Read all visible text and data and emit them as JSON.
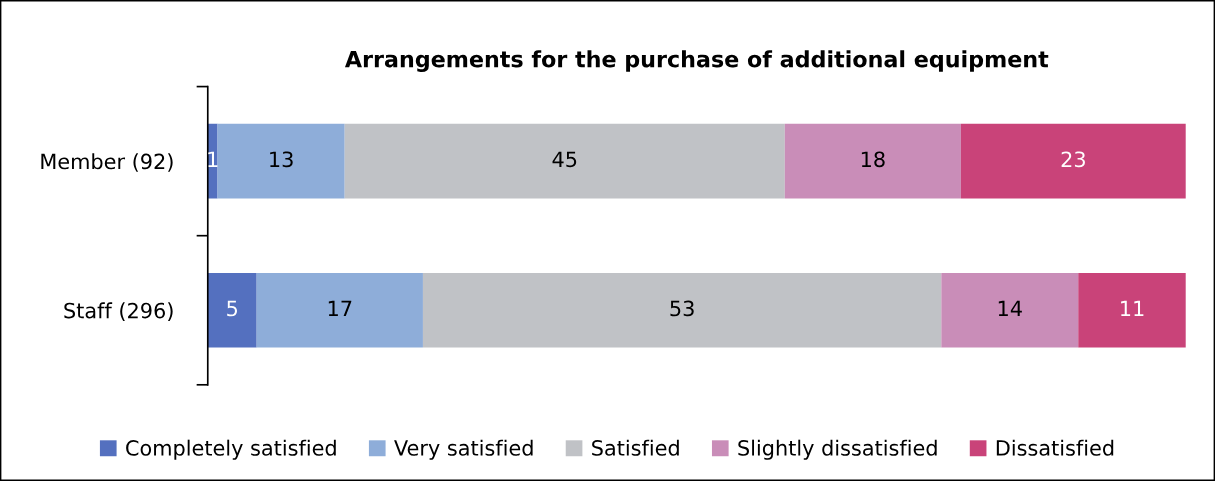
{
  "chart_data": {
    "type": "bar",
    "orientation": "horizontal",
    "stacked": true,
    "title": "Arrangements for the purchase of additional equipment",
    "categories": [
      "Member (92)",
      "Staff (296)"
    ],
    "series": [
      {
        "name": "Completely satisfied",
        "color": "#5470bf",
        "values": [
          1,
          5
        ]
      },
      {
        "name": "Very satisfied",
        "color": "#8eadd9",
        "values": [
          13,
          17
        ]
      },
      {
        "name": "Satisfied",
        "color": "#c0c2c6",
        "values": [
          45,
          53
        ]
      },
      {
        "name": "Slightly dissatisfied",
        "color": "#c98db8",
        "values": [
          18,
          14
        ]
      },
      {
        "name": "Dissatisfied",
        "color": "#c94379",
        "values": [
          23,
          11
        ]
      }
    ],
    "data_labels": true,
    "legend": "bottom",
    "grid": false,
    "tick_labels": "y"
  }
}
